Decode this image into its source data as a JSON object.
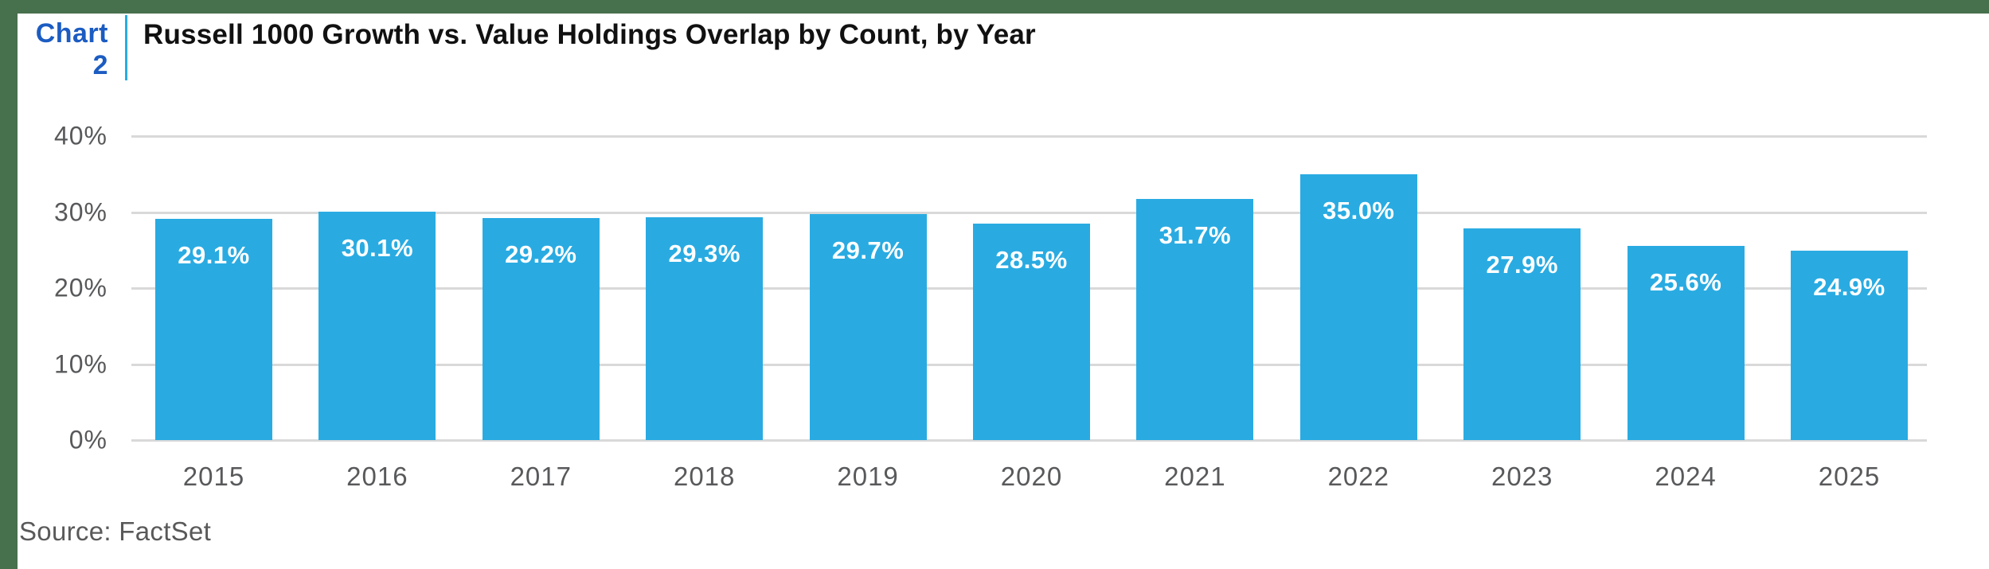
{
  "header": {
    "chart_label": {
      "line1": "Chart",
      "line2": "2"
    },
    "title": "Russell 1000 Growth vs. Value Holdings Overlap by Count, by Year"
  },
  "footer": {
    "source": "Source: FactSet"
  },
  "colors": {
    "bar": "#29ABE2",
    "chart_label_blue": "#1C5CC2",
    "divider_blue": "#29ABE2",
    "border_green": "#47704D",
    "gridline": "#D9D9D9",
    "axis_text": "#58595B",
    "value_label_text": "#FFFFFF",
    "title_text": "#111111"
  },
  "chart_data": {
    "type": "bar",
    "title": "Russell 1000 Growth vs. Value Holdings Overlap by Count, by Year",
    "categories": [
      "2015",
      "2016",
      "2017",
      "2018",
      "2019",
      "2020",
      "2021",
      "2022",
      "2023",
      "2024",
      "2025"
    ],
    "values": [
      29.1,
      30.1,
      29.2,
      29.3,
      29.7,
      28.5,
      31.7,
      35.0,
      27.9,
      25.6,
      24.9
    ],
    "value_labels": [
      "29.1%",
      "30.1%",
      "29.2%",
      "29.3%",
      "29.7%",
      "28.5%",
      "31.7%",
      "35.0%",
      "27.9%",
      "25.6%",
      "24.9%"
    ],
    "xlabel": "",
    "ylabel": "",
    "y_ticks": [
      "40%",
      "30%",
      "20%",
      "10%",
      "0%"
    ],
    "y_tick_values": [
      40,
      30,
      20,
      10,
      0
    ],
    "ylim": [
      0,
      40
    ],
    "grid": "horizontal",
    "legend": "none",
    "value_label_position": "inside-top",
    "source": "Source: FactSet"
  }
}
